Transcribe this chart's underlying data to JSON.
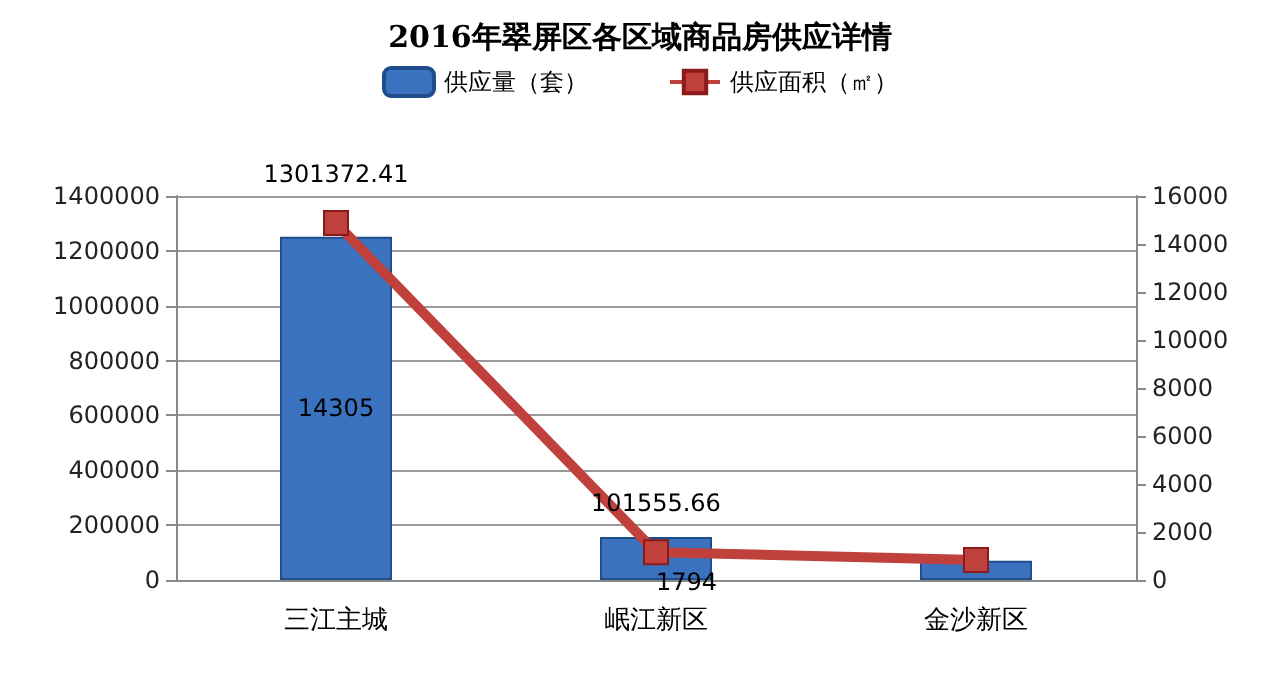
{
  "chart_data": {
    "type": "bar",
    "title": "2016年翠屏区各区域商品房供应详情",
    "categories": [
      "三江主城",
      "岷江新区",
      "金沙新区"
    ],
    "series": [
      {
        "name": "供应量（套）",
        "axis": "y2",
        "color": "#3a72c0",
        "values": [
          14305,
          1794,
          800
        ],
        "value_labels": [
          "14305",
          "1794",
          null
        ]
      },
      {
        "name": "供应面积（㎡）",
        "type": "line",
        "color": "#c0403c",
        "marker": "square",
        "values": [
          1301372.41,
          101555.66,
          73000
        ],
        "value_labels": [
          "1301372.41",
          "101555.66",
          null
        ]
      }
    ],
    "ylim": [
      0,
      1400000
    ],
    "yticks": [
      0,
      200000,
      400000,
      600000,
      800000,
      1000000,
      1200000,
      1400000
    ],
    "y2lim": [
      0,
      16000
    ],
    "y2ticks": [
      0,
      2000,
      4000,
      6000,
      8000,
      10000,
      12000,
      14000,
      16000
    ],
    "grid": "y",
    "legend": "top"
  }
}
